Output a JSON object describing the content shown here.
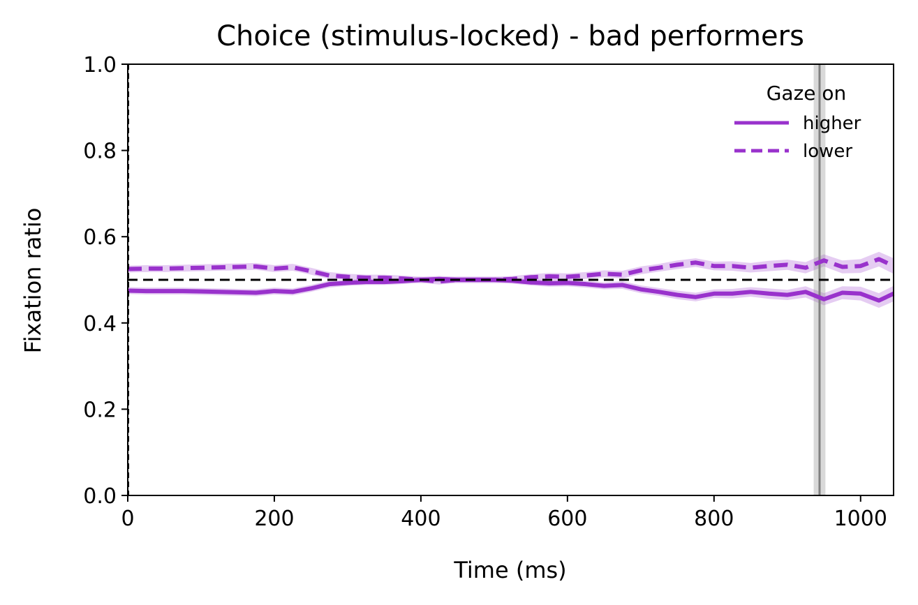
{
  "chart_data": {
    "type": "line",
    "title": "Choice (stimulus-locked) - bad performers",
    "xlabel": "Time (ms)",
    "ylabel": "Fixation ratio",
    "xlim": [
      0,
      1045
    ],
    "ylim": [
      0.0,
      1.0
    ],
    "x_ticks": [
      0,
      200,
      400,
      600,
      800,
      1000
    ],
    "y_ticks": [
      0.0,
      0.2,
      0.4,
      0.6,
      0.8,
      1.0
    ],
    "x_tick_labels": [
      "0",
      "200",
      "400",
      "600",
      "800",
      "1000"
    ],
    "y_tick_labels": [
      "0.0",
      "0.2",
      "0.4",
      "0.6",
      "0.8",
      "1.0"
    ],
    "grid": false,
    "legend": {
      "title": "Gaze on",
      "placement": "top-right"
    },
    "x": [
      0,
      25,
      50,
      75,
      100,
      125,
      150,
      175,
      200,
      225,
      250,
      275,
      300,
      325,
      350,
      375,
      400,
      425,
      450,
      475,
      500,
      525,
      550,
      575,
      600,
      625,
      650,
      675,
      700,
      725,
      750,
      775,
      800,
      825,
      850,
      875,
      900,
      925,
      950,
      975,
      1000,
      1025,
      1045
    ],
    "series": [
      {
        "name": "higher",
        "color": "#9932cc",
        "style": "solid",
        "values": [
          0.475,
          0.474,
          0.474,
          0.474,
          0.473,
          0.472,
          0.471,
          0.47,
          0.474,
          0.472,
          0.48,
          0.49,
          0.493,
          0.495,
          0.495,
          0.497,
          0.5,
          0.502,
          0.5,
          0.5,
          0.5,
          0.498,
          0.494,
          0.492,
          0.493,
          0.49,
          0.486,
          0.488,
          0.478,
          0.472,
          0.465,
          0.46,
          0.468,
          0.468,
          0.472,
          0.468,
          0.465,
          0.472,
          0.455,
          0.47,
          0.468,
          0.452,
          0.468
        ],
        "band": [
          0.008,
          0.008,
          0.008,
          0.008,
          0.008,
          0.008,
          0.008,
          0.008,
          0.008,
          0.008,
          0.008,
          0.008,
          0.007,
          0.007,
          0.007,
          0.007,
          0.007,
          0.007,
          0.007,
          0.007,
          0.007,
          0.007,
          0.007,
          0.008,
          0.008,
          0.008,
          0.008,
          0.009,
          0.009,
          0.009,
          0.01,
          0.01,
          0.01,
          0.011,
          0.011,
          0.012,
          0.012,
          0.013,
          0.014,
          0.015,
          0.016,
          0.017,
          0.018
        ]
      },
      {
        "name": "lower",
        "color": "#9932cc",
        "style": "dashed",
        "values": [
          0.525,
          0.526,
          0.526,
          0.527,
          0.528,
          0.529,
          0.53,
          0.531,
          0.526,
          0.529,
          0.52,
          0.51,
          0.507,
          0.505,
          0.505,
          0.503,
          0.5,
          0.496,
          0.5,
          0.5,
          0.5,
          0.502,
          0.506,
          0.508,
          0.507,
          0.51,
          0.514,
          0.512,
          0.522,
          0.528,
          0.535,
          0.54,
          0.532,
          0.532,
          0.528,
          0.532,
          0.535,
          0.528,
          0.545,
          0.53,
          0.532,
          0.548,
          0.532
        ],
        "band": [
          0.008,
          0.008,
          0.008,
          0.008,
          0.008,
          0.008,
          0.008,
          0.008,
          0.008,
          0.008,
          0.008,
          0.008,
          0.007,
          0.007,
          0.007,
          0.007,
          0.007,
          0.007,
          0.007,
          0.007,
          0.007,
          0.007,
          0.007,
          0.008,
          0.008,
          0.008,
          0.008,
          0.009,
          0.009,
          0.009,
          0.01,
          0.01,
          0.01,
          0.011,
          0.011,
          0.012,
          0.012,
          0.013,
          0.014,
          0.015,
          0.016,
          0.017,
          0.018
        ]
      }
    ],
    "reference_lines": {
      "horizontal_chance": {
        "y": 0.5,
        "color": "#000000",
        "style": "dashed"
      },
      "vertical_onset": {
        "x": 0,
        "color": "#000000",
        "style": "dashed"
      },
      "vertical_mean_rt": {
        "x": 944,
        "band": [
          936,
          952
        ],
        "color": "#808080"
      }
    }
  }
}
